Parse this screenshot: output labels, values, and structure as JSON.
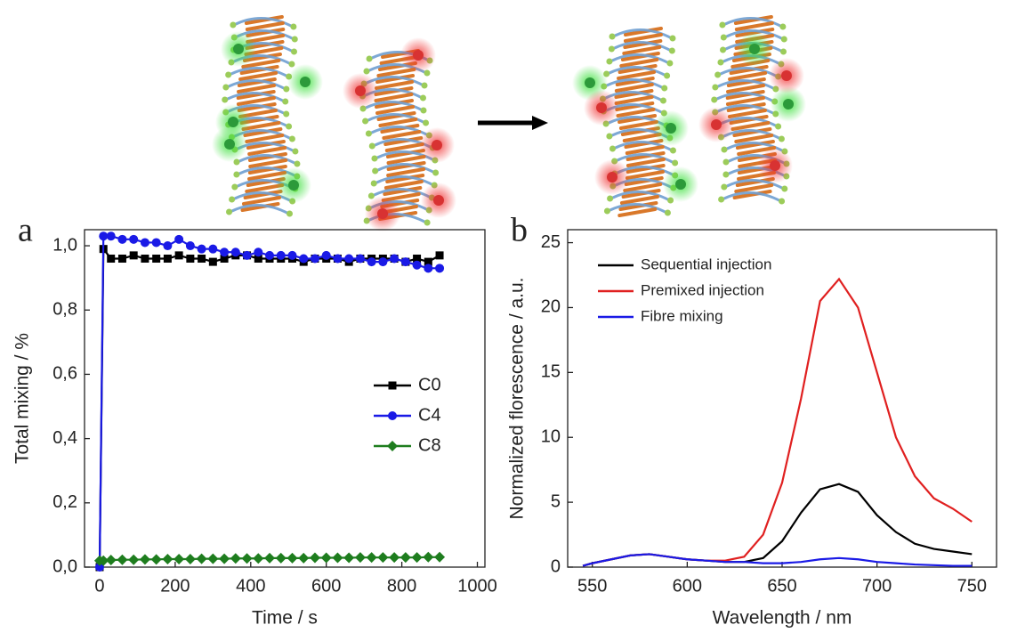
{
  "chart_data": [
    {
      "type": "line",
      "panel_label": "a",
      "xlabel": "Time / s",
      "ylabel": "Total mixing / %",
      "x": [
        0,
        10,
        30,
        60,
        90,
        120,
        150,
        180,
        210,
        240,
        270,
        300,
        330,
        360,
        390,
        420,
        450,
        480,
        510,
        540,
        570,
        600,
        630,
        660,
        690,
        720,
        750,
        780,
        810,
        840,
        870,
        900
      ],
      "series": [
        {
          "name": "C0",
          "color": "#000000",
          "marker": "square",
          "values": [
            0.0,
            0.99,
            0.96,
            0.96,
            0.97,
            0.96,
            0.96,
            0.96,
            0.97,
            0.96,
            0.96,
            0.95,
            0.96,
            0.97,
            0.97,
            0.96,
            0.96,
            0.96,
            0.96,
            0.95,
            0.96,
            0.96,
            0.96,
            0.95,
            0.96,
            0.96,
            0.96,
            0.96,
            0.95,
            0.96,
            0.95,
            0.97
          ]
        },
        {
          "name": "C4",
          "color": "#1a1ae6",
          "marker": "circle",
          "values": [
            0.0,
            1.03,
            1.03,
            1.02,
            1.02,
            1.01,
            1.01,
            1.0,
            1.02,
            1.0,
            0.99,
            0.99,
            0.98,
            0.98,
            0.97,
            0.98,
            0.97,
            0.97,
            0.97,
            0.96,
            0.96,
            0.97,
            0.96,
            0.96,
            0.96,
            0.95,
            0.95,
            0.96,
            0.95,
            0.94,
            0.93,
            0.93
          ]
        },
        {
          "name": "C8",
          "color": "#1e7d1e",
          "marker": "diamond",
          "values": [
            0.02,
            0.02,
            0.022,
            0.023,
            0.023,
            0.024,
            0.024,
            0.025,
            0.025,
            0.025,
            0.026,
            0.026,
            0.026,
            0.027,
            0.027,
            0.027,
            0.028,
            0.028,
            0.028,
            0.028,
            0.029,
            0.029,
            0.029,
            0.029,
            0.03,
            0.03,
            0.03,
            0.03,
            0.03,
            0.03,
            0.031,
            0.031
          ]
        }
      ],
      "xlim": [
        -40,
        1020
      ],
      "ylim": [
        0,
        1.05
      ],
      "xticks": [
        0,
        200,
        400,
        600,
        800,
        1000
      ],
      "yticks": [
        {
          "value": 0,
          "label": "0,0"
        },
        {
          "value": 0.2,
          "label": "0,2"
        },
        {
          "value": 0.4,
          "label": "0,4"
        },
        {
          "value": 0.6,
          "label": "0,6"
        },
        {
          "value": 0.8,
          "label": "0,8"
        },
        {
          "value": 1.0,
          "label": "1,0"
        }
      ],
      "legend": "right"
    },
    {
      "type": "line",
      "panel_label": "b",
      "xlabel": "Wavelength / nm",
      "ylabel": "Normalized florescence / a.u.",
      "x": [
        545,
        550,
        560,
        570,
        580,
        590,
        600,
        610,
        620,
        630,
        640,
        650,
        660,
        670,
        680,
        690,
        700,
        710,
        720,
        730,
        740,
        750
      ],
      "series": [
        {
          "name": "Sequential injection",
          "color": "#000000",
          "values": [
            0.1,
            0.3,
            0.6,
            0.9,
            1.0,
            0.8,
            0.6,
            0.5,
            0.4,
            0.4,
            0.7,
            2.0,
            4.2,
            6.0,
            6.4,
            5.8,
            4.0,
            2.7,
            1.8,
            1.4,
            1.2,
            1.0
          ]
        },
        {
          "name": "Premixed injection",
          "color": "#e02020",
          "values": [
            0.1,
            0.3,
            0.6,
            0.9,
            1.0,
            0.8,
            0.6,
            0.5,
            0.5,
            0.8,
            2.5,
            6.5,
            13,
            20.5,
            22.2,
            20,
            15,
            10,
            7,
            5.3,
            4.5,
            3.5
          ]
        },
        {
          "name": "Fibre mixing",
          "color": "#1a1ae6",
          "values": [
            0.1,
            0.3,
            0.6,
            0.9,
            1.0,
            0.8,
            0.6,
            0.5,
            0.4,
            0.4,
            0.3,
            0.3,
            0.4,
            0.6,
            0.7,
            0.6,
            0.4,
            0.3,
            0.2,
            0.15,
            0.1,
            0.1
          ]
        }
      ],
      "xlim": [
        537,
        763
      ],
      "ylim": [
        0,
        26
      ],
      "xticks": [
        550,
        600,
        650,
        700,
        750
      ],
      "yticks": [
        0,
        5,
        10,
        15,
        20,
        25
      ],
      "legend": "upper left"
    }
  ]
}
